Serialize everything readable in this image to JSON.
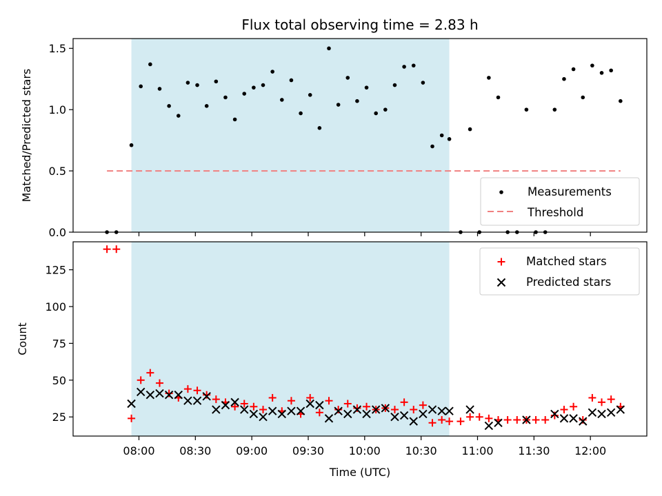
{
  "chart_data": [
    {
      "type": "scatter",
      "title": "Flux total observing time = 2.83 h",
      "ylabel": "Matched/Predicted stars",
      "xlabel": "",
      "ylim": [
        0,
        1.58
      ],
      "yticks": [
        0.0,
        0.5,
        1.0,
        1.5
      ],
      "ytick_labels": [
        "0.0",
        "0.5",
        "1.0",
        "1.5"
      ],
      "legend_position": "lower-right",
      "shaded_region": {
        "start": "07:56",
        "end": "10:45",
        "color": "#d4ebf2"
      },
      "series": [
        {
          "name": "Measurements",
          "marker": "dot",
          "color": "#000000",
          "x": [
            "07:43",
            "07:48",
            "07:56",
            "08:01",
            "08:06",
            "08:11",
            "08:16",
            "08:21",
            "08:26",
            "08:31",
            "08:36",
            "08:41",
            "08:46",
            "08:51",
            "08:56",
            "09:01",
            "09:06",
            "09:11",
            "09:16",
            "09:21",
            "09:26",
            "09:31",
            "09:36",
            "09:41",
            "09:46",
            "09:51",
            "09:56",
            "10:01",
            "10:06",
            "10:11",
            "10:16",
            "10:21",
            "10:26",
            "10:31",
            "10:36",
            "10:41",
            "10:45",
            "10:51",
            "10:56",
            "11:01",
            "11:06",
            "11:11",
            "11:16",
            "11:21",
            "11:26",
            "11:31",
            "11:36",
            "11:41",
            "11:46",
            "11:51",
            "11:56",
            "12:01",
            "12:06",
            "12:11",
            "12:16"
          ],
          "y": [
            0.0,
            0.0,
            0.71,
            1.19,
            1.37,
            1.17,
            1.03,
            0.95,
            1.22,
            1.2,
            1.03,
            1.23,
            1.1,
            0.92,
            1.13,
            1.18,
            1.2,
            1.31,
            1.08,
            1.24,
            0.97,
            1.12,
            0.85,
            1.5,
            1.04,
            1.26,
            1.07,
            1.18,
            0.97,
            1.0,
            1.2,
            1.35,
            1.36,
            1.22,
            0.7,
            0.79,
            0.76,
            0.0,
            0.84,
            0.0,
            1.26,
            1.1,
            0.0,
            0.0,
            1.0,
            0.0,
            0.0,
            1.0,
            1.25,
            1.33,
            1.1,
            1.36,
            1.3,
            1.32,
            1.07
          ]
        },
        {
          "name": "Threshold",
          "style": "dashed",
          "color": "#f08080",
          "x": [
            "07:43",
            "12:16"
          ],
          "y": [
            0.5,
            0.5
          ]
        }
      ]
    },
    {
      "type": "scatter",
      "title": "",
      "xlabel": "Time (UTC)",
      "ylabel": "Count",
      "ylim": [
        12,
        144
      ],
      "yticks": [
        25,
        50,
        75,
        100,
        125
      ],
      "ytick_labels": [
        "25",
        "50",
        "75",
        "100",
        "125"
      ],
      "xtick_labels": [
        "08:00",
        "08:30",
        "09:00",
        "09:30",
        "10:00",
        "10:30",
        "11:00",
        "11:30",
        "12:00"
      ],
      "xlim": [
        "07:25",
        "12:30"
      ],
      "legend_position": "top-right",
      "shaded_region": {
        "start": "07:56",
        "end": "10:45",
        "color": "#d4ebf2"
      },
      "series": [
        {
          "name": "Matched stars",
          "marker": "plus",
          "color": "#ff0000",
          "x": [
            "07:43",
            "07:48",
            "07:56",
            "08:01",
            "08:06",
            "08:11",
            "08:16",
            "08:21",
            "08:26",
            "08:31",
            "08:36",
            "08:41",
            "08:46",
            "08:51",
            "08:56",
            "09:01",
            "09:06",
            "09:11",
            "09:16",
            "09:21",
            "09:26",
            "09:31",
            "09:36",
            "09:41",
            "09:46",
            "09:51",
            "09:56",
            "10:01",
            "10:06",
            "10:11",
            "10:16",
            "10:21",
            "10:26",
            "10:31",
            "10:36",
            "10:41",
            "10:45",
            "10:51",
            "10:56",
            "11:01",
            "11:06",
            "11:11",
            "11:16",
            "11:21",
            "11:26",
            "11:31",
            "11:36",
            "11:41",
            "11:46",
            "11:51",
            "11:56",
            "12:01",
            "12:06",
            "12:11",
            "12:16"
          ],
          "y": [
            139,
            139,
            24,
            50,
            55,
            48,
            41,
            38,
            44,
            43,
            40,
            37,
            35,
            32,
            34,
            32,
            30,
            38,
            29,
            36,
            27,
            38,
            28,
            36,
            30,
            34,
            31,
            32,
            30,
            31,
            30,
            35,
            30,
            33,
            21,
            23,
            22,
            22,
            25,
            25,
            24,
            23,
            23,
            23,
            23,
            23,
            23,
            26,
            30,
            32,
            23,
            38,
            35,
            37,
            32
          ]
        },
        {
          "name": "Predicted stars",
          "marker": "x",
          "color": "#000000",
          "x": [
            "07:56",
            "08:01",
            "08:06",
            "08:11",
            "08:16",
            "08:21",
            "08:26",
            "08:31",
            "08:36",
            "08:41",
            "08:46",
            "08:51",
            "08:56",
            "09:01",
            "09:06",
            "09:11",
            "09:16",
            "09:21",
            "09:26",
            "09:31",
            "09:36",
            "09:41",
            "09:46",
            "09:51",
            "09:56",
            "10:01",
            "10:06",
            "10:11",
            "10:16",
            "10:21",
            "10:26",
            "10:31",
            "10:36",
            "10:41",
            "10:45",
            "10:56",
            "11:06",
            "11:11",
            "11:26",
            "11:41",
            "11:46",
            "11:51",
            "11:56",
            "12:01",
            "12:06",
            "12:11",
            "12:16"
          ],
          "y": [
            34,
            42,
            40,
            41,
            40,
            40,
            36,
            36,
            39,
            30,
            33,
            35,
            30,
            27,
            25,
            29,
            27,
            29,
            29,
            34,
            33,
            24,
            29,
            27,
            30,
            27,
            30,
            31,
            25,
            26,
            22,
            27,
            30,
            29,
            29,
            30,
            19,
            21,
            23,
            27,
            24,
            24,
            22,
            28,
            27,
            28,
            30
          ]
        }
      ]
    }
  ]
}
